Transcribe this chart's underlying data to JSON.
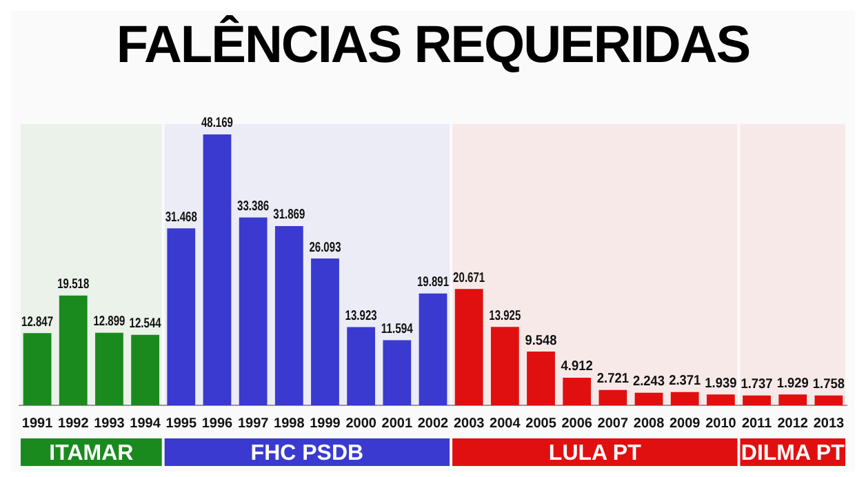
{
  "chart_data": {
    "type": "bar",
    "title": "FALÊNCIAS REQUERIDAS",
    "categories": [
      "1991",
      "1992",
      "1993",
      "1994",
      "1995",
      "1996",
      "1997",
      "1998",
      "1999",
      "2000",
      "2001",
      "2002",
      "2003",
      "2004",
      "2005",
      "2006",
      "2007",
      "2008",
      "2009",
      "2010",
      "2011",
      "2012",
      "2013"
    ],
    "values": [
      12847,
      19518,
      12899,
      12544,
      31468,
      48169,
      33386,
      31869,
      26093,
      13923,
      11594,
      19891,
      20671,
      13925,
      9548,
      4912,
      2721,
      2243,
      2371,
      1939,
      1737,
      1929,
      1758
    ],
    "value_labels": [
      "12.847",
      "19.518",
      "12.899",
      "12.544",
      "31.468",
      "48.169",
      "33.386",
      "31.869",
      "26.093",
      "13.923",
      "11.594",
      "19.891",
      "20.671",
      "13.925",
      "9.548",
      "4.912",
      "2.721",
      "2.243",
      "2.371",
      "1.939",
      "1.737",
      "1.929",
      "1.758"
    ],
    "colors": [
      "#1a8a1f",
      "#1a8a1f",
      "#1a8a1f",
      "#1a8a1f",
      "#3a3ad0",
      "#3a3ad0",
      "#3a3ad0",
      "#3a3ad0",
      "#3a3ad0",
      "#3a3ad0",
      "#3a3ad0",
      "#3a3ad0",
      "#e01010",
      "#e01010",
      "#e01010",
      "#e01010",
      "#e01010",
      "#e01010",
      "#e01010",
      "#e01010",
      "#e01010",
      "#e01010",
      "#e01010"
    ],
    "bands": [
      {
        "axis": "x",
        "from": "1991",
        "to": "1994",
        "label": "ITAMAR",
        "color": "#1a8a1f"
      },
      {
        "axis": "x",
        "from": "1995",
        "to": "2002",
        "label": "FHC PSDB",
        "color": "#3a3ad0"
      },
      {
        "axis": "x",
        "from": "2003",
        "to": "2010",
        "label": "LULA PT",
        "color": "#e01010"
      },
      {
        "axis": "x",
        "from": "2011",
        "to": "2013",
        "label": "DILMA PT",
        "color": "#e01010"
      }
    ],
    "grid": false,
    "legend": false
  }
}
